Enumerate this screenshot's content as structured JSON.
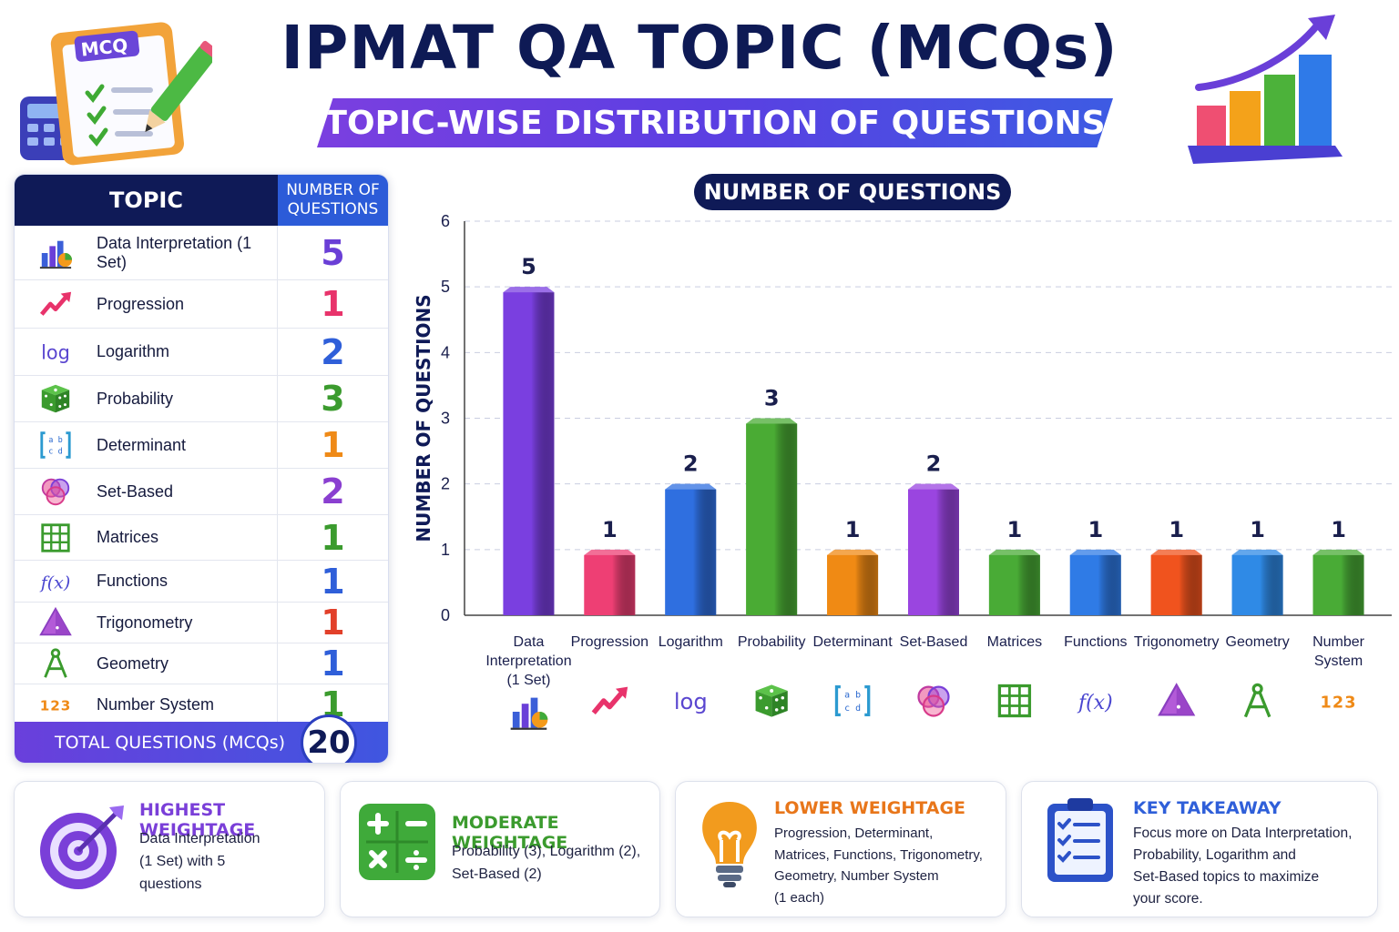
{
  "header": {
    "title": "IPMAT QA TOPIC (MCQs)",
    "subtitle": "TOPIC-WISE DISTRIBUTION OF QUESTIONS",
    "clipboard_badge": "MCQ"
  },
  "table": {
    "col_topic": "TOPIC",
    "col_number": "NUMBER OF QUESTIONS",
    "rows": [
      {
        "name": "Data Interpretation (1 Set)",
        "count": "5",
        "icon": "bar-pie-chart-icon",
        "color": "#6a3fd6"
      },
      {
        "name": "Progression",
        "count": "1",
        "icon": "trend-arrow-icon",
        "color": "#e8336b"
      },
      {
        "name": "Logarithm",
        "count": "2",
        "icon": "log-icon",
        "color": "#2f5fd9"
      },
      {
        "name": "Probability",
        "count": "3",
        "icon": "dice-icon",
        "color": "#3b9b2e"
      },
      {
        "name": "Determinant",
        "count": "1",
        "icon": "determinant-icon",
        "color": "#ef8a17"
      },
      {
        "name": "Set-Based",
        "count": "2",
        "icon": "venn-diagram-icon",
        "color": "#8a3fd0"
      },
      {
        "name": "Matrices",
        "count": "1",
        "icon": "grid-icon",
        "color": "#3b9b2e"
      },
      {
        "name": "Functions",
        "count": "1",
        "icon": "fx-icon",
        "color": "#2f5fd9"
      },
      {
        "name": "Trigonometry",
        "count": "1",
        "icon": "triangle-icon",
        "color": "#e2402a"
      },
      {
        "name": "Geometry",
        "count": "1",
        "icon": "compass-icon",
        "color": "#2f5fd9"
      },
      {
        "name": "Number System",
        "count": "1",
        "icon": "numbers-icon",
        "color": "#3b9b2e"
      }
    ],
    "total_label": "TOTAL QUESTIONS (MCQs)",
    "total_value": "20"
  },
  "chart_data": {
    "type": "bar",
    "title": "NUMBER OF QUESTIONS",
    "ylabel": "NUMBER OF QUESTIONS",
    "xlabel": "",
    "ylim": [
      0,
      6
    ],
    "yticks": [
      0,
      1,
      2,
      3,
      4,
      5,
      6
    ],
    "grid": true,
    "categories": [
      "Data Interpretation (1 Set)",
      "Progression",
      "Logarithm",
      "Probability",
      "Determinant",
      "Set-Based",
      "Matrices",
      "Functions",
      "Trigonometry",
      "Geometry",
      "Number System"
    ],
    "category_lines": [
      [
        "Data",
        "Interpretation",
        "(1 Set)"
      ],
      [
        "Progression"
      ],
      [
        "Logarithm"
      ],
      [
        "Probability"
      ],
      [
        "Determinant"
      ],
      [
        "Set-Based"
      ],
      [
        "Matrices"
      ],
      [
        "Functions"
      ],
      [
        "Trigonometry"
      ],
      [
        "Geometry"
      ],
      [
        "Number",
        "System"
      ]
    ],
    "values": [
      5,
      1,
      2,
      3,
      1,
      2,
      1,
      1,
      1,
      1,
      1
    ],
    "colors": [
      "#7a3fe0",
      "#ee3f74",
      "#2f6fe0",
      "#4aab34",
      "#f08a14",
      "#9a45e0",
      "#49ab36",
      "#2f7be6",
      "#f0531e",
      "#2f8ae6",
      "#49ab36"
    ],
    "icons": [
      "bar-pie-chart-icon",
      "trend-arrow-icon",
      "log-icon",
      "dice-icon",
      "determinant-icon",
      "venn-diagram-icon",
      "grid-icon",
      "fx-icon",
      "triangle-icon",
      "compass-icon",
      "numbers-icon"
    ]
  },
  "cards": [
    {
      "title": "HIGHEST WEIGHTAGE",
      "lines": [
        "Data Interpretation",
        "(1 Set) with 5",
        "questions"
      ],
      "icon": "target-icon",
      "color": "#7a3fd8"
    },
    {
      "title": "MODERATE WEIGHTAGE",
      "lines": [
        "Probability (3), Logarithm (2),",
        "Set-Based (2)"
      ],
      "icon": "calculator-icon",
      "color": "#3b9b2e"
    },
    {
      "title": "LOWER WEIGHTAGE",
      "lines": [
        "Progression, Determinant,",
        "Matrices, Functions, Trigonometry,",
        "Geometry, Number System",
        "(1 each)"
      ],
      "icon": "lightbulb-icon",
      "color": "#e8761a"
    },
    {
      "title": "KEY TAKEAWAY",
      "lines": [
        "Focus more on Data Interpretation,",
        "Probability, Logarithm and",
        "Set-Based topics to maximize",
        "your score."
      ],
      "icon": "checklist-icon",
      "color": "#2f5fd9"
    }
  ],
  "icon_text": {
    "log": "log",
    "fx": "f(x)",
    "numbers": "123",
    "det_top": "a b",
    "det_bot": "c d"
  }
}
